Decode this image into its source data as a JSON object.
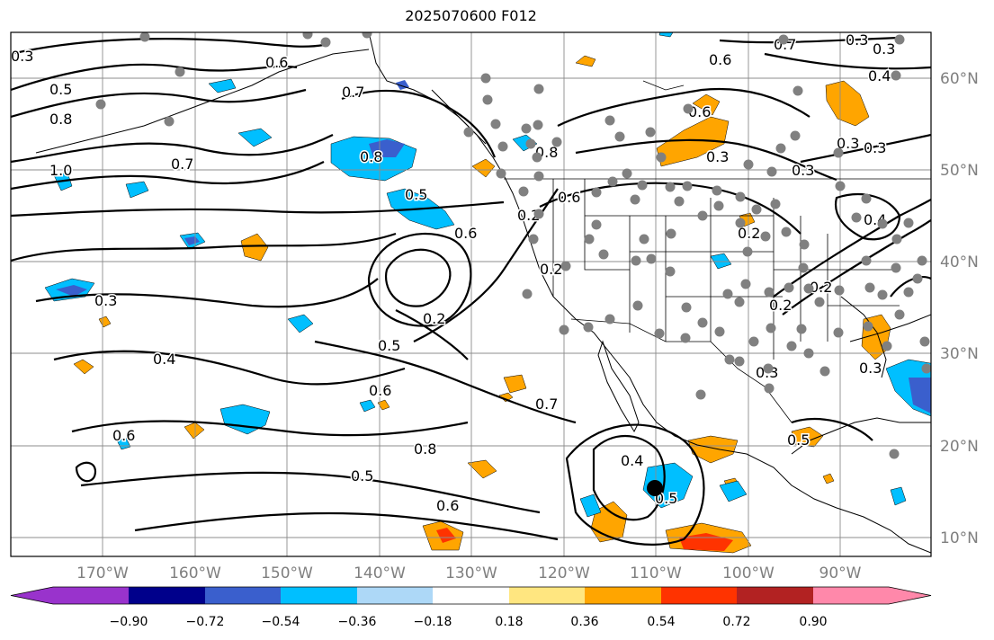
{
  "title": "2025070600 F012",
  "latitude_labels": [
    "60°N",
    "50°N",
    "40°N",
    "30°N",
    "20°N",
    "10°N"
  ],
  "longitude_labels": [
    "170°W",
    "160°W",
    "150°W",
    "140°W",
    "130°W",
    "120°W",
    "110°W",
    "100°W",
    "90°W"
  ],
  "colorbar": {
    "tick_labels": [
      "−0.90",
      "−0.72",
      "−0.54",
      "−0.36",
      "−0.18",
      "0.18",
      "0.36",
      "0.54",
      "0.72",
      "0.90"
    ],
    "colors": [
      "#9933cc",
      "#00008b",
      "#3a5fcd",
      "#00bfff",
      "#add8f7",
      "#ffffff",
      "#ffe680",
      "#ffa500",
      "#ff3300",
      "#b22222",
      "#ff88aa"
    ]
  },
  "contour_labels": [
    "0.3",
    "0.5",
    "0.8",
    "1.0",
    "0.6",
    "0.7",
    "0.7",
    "0.8",
    "0.5",
    "0.6",
    "0.3",
    "0.4",
    "0.2",
    "0.5",
    "0.6",
    "0.7",
    "0.8",
    "0.5",
    "0.6",
    "0.4",
    "0.5",
    "0.6",
    "0.6",
    "0.6",
    "0.3",
    "0.2",
    "0.2",
    "0.3",
    "0.3",
    "0.4",
    "0.3",
    "0.3",
    "0.4",
    "0.2",
    "0.5",
    "0.3",
    "0.2",
    "0.2",
    "0.6",
    "0.8",
    "0.7",
    "0.3",
    "0.3"
  ],
  "colors": {
    "ocean_background": "#ffffff",
    "positive_shading": "#ffa500",
    "negative_shading": "#00bfff",
    "station_dots": "#808080"
  }
}
